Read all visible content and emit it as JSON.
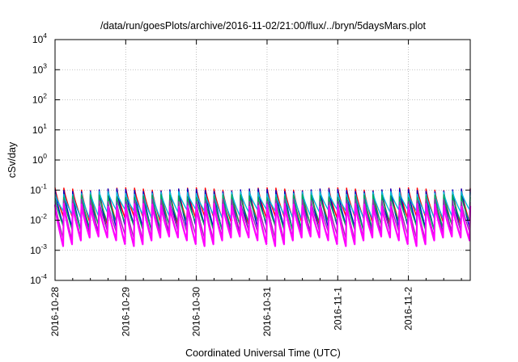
{
  "chart_data": {
    "type": "line",
    "title": "/data/run/goesPlots/archive/2016-11-02/21:00/flux/../bryn/5daysMars.plot",
    "xlabel": "Coordinated Universal Time (UTC)",
    "ylabel": "cSv/day",
    "y_scale": "log",
    "ylim": [
      0.0001,
      10000
    ],
    "y_ticks": [
      {
        "base": "10",
        "exp": "4"
      },
      {
        "base": "10",
        "exp": "3"
      },
      {
        "base": "10",
        "exp": "2"
      },
      {
        "base": "10",
        "exp": "1"
      },
      {
        "base": "10",
        "exp": "0"
      },
      {
        "base": "10",
        "exp": "-1"
      },
      {
        "base": "10",
        "exp": "-2"
      },
      {
        "base": "10",
        "exp": "-3"
      },
      {
        "base": "10",
        "exp": "-4"
      }
    ],
    "xlim": [
      "2016-10-28 00:00",
      "2016-11-02 21:00"
    ],
    "x_ticks": [
      "2016-10-28",
      "2016-10-29",
      "2016-10-30",
      "2016-10-31",
      "2016-11-1",
      "2016-11-2"
    ],
    "grid": true,
    "sawtooth_period_hours": 3,
    "series": [
      {
        "color": "#ff0000",
        "peak": 0.12,
        "trough": 0.012
      },
      {
        "color": "#0000cc",
        "peak": 0.11,
        "trough": 0.006
      },
      {
        "color": "#00bbdd",
        "peak": 0.09,
        "trough": 0.02
      },
      {
        "color": "#00aa55",
        "peak": 0.07,
        "trough": 0.008
      },
      {
        "color": "#9933aa",
        "peak": 0.05,
        "trough": 0.004
      },
      {
        "color": "#ff00ff",
        "peak": 0.035,
        "trough": 0.0025
      }
    ]
  }
}
